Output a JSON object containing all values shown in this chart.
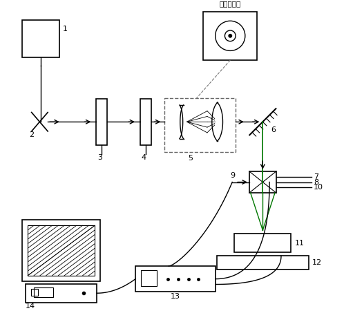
{
  "title": "光束横截面",
  "background_color": "#ffffff",
  "line_color": "#000000",
  "green_color": "#007700",
  "fig_width": 4.98,
  "fig_height": 4.79
}
